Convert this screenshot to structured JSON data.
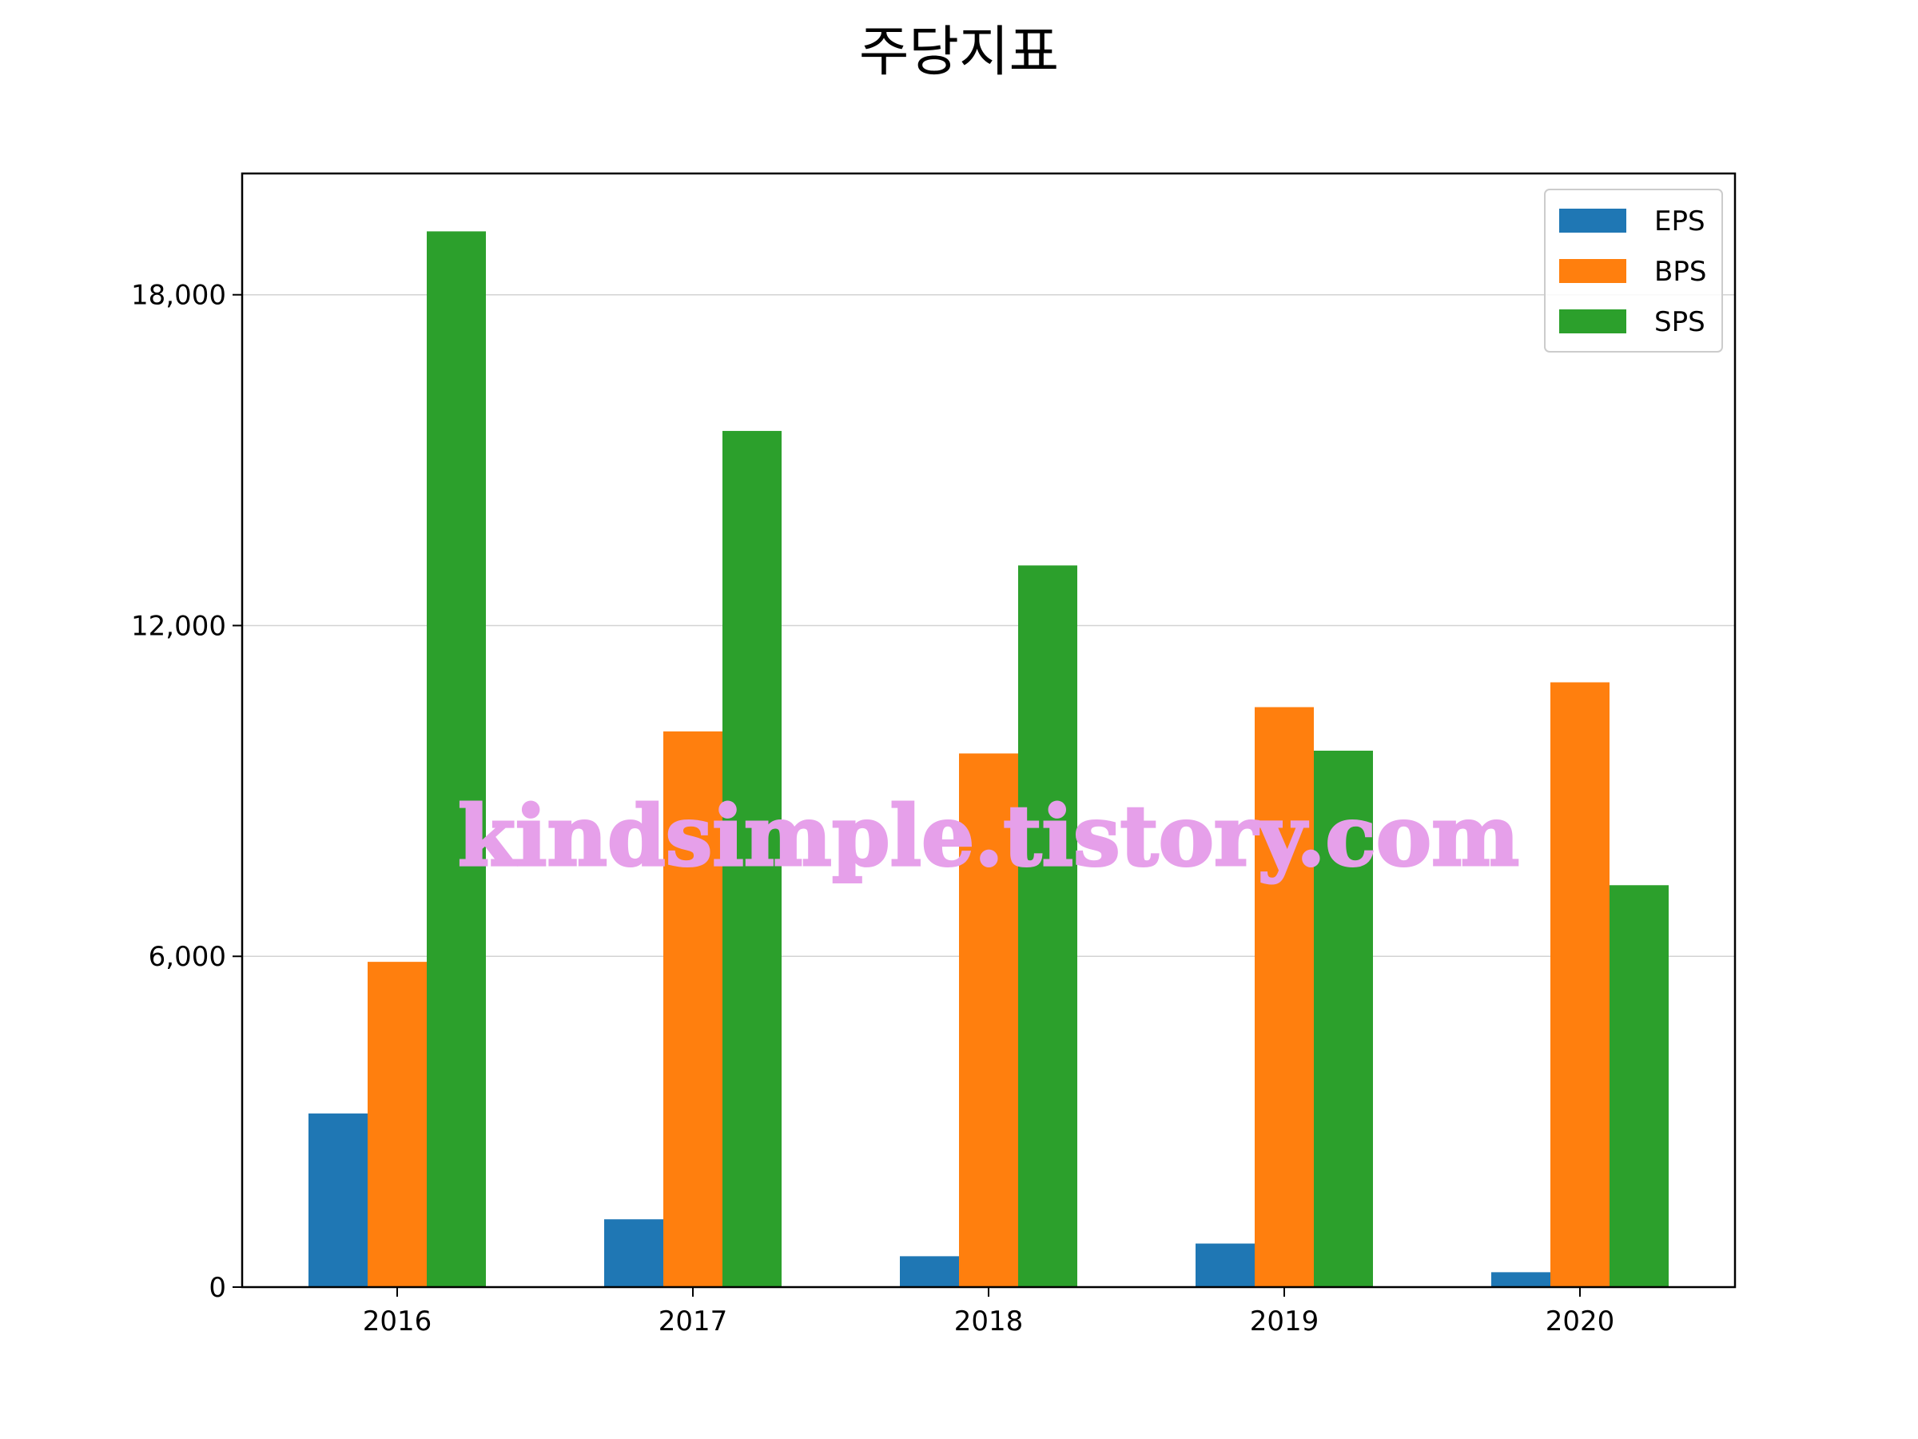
{
  "chart_data": {
    "type": "bar",
    "title": "주당지표",
    "xlabel": "",
    "ylabel": "",
    "categories": [
      "2016",
      "2017",
      "2018",
      "2019",
      "2020"
    ],
    "series": [
      {
        "name": "EPS",
        "color": "#1f77b4",
        "values": [
          3150,
          1230,
          560,
          790,
          270
        ]
      },
      {
        "name": "BPS",
        "color": "#ff7f0e",
        "values": [
          5900,
          10080,
          9680,
          10520,
          10970
        ]
      },
      {
        "name": "SPS",
        "color": "#2ca02c",
        "values": [
          19150,
          15530,
          13090,
          9730,
          7290
        ]
      }
    ],
    "ylim": [
      0,
      20200
    ],
    "yticks": [
      0,
      6000,
      12000,
      18000
    ],
    "ytick_labels": [
      "0",
      "6,000",
      "12,000",
      "18,000"
    ],
    "grid": "y",
    "legend_position": "top-right"
  },
  "watermark": "kindsimple.tistory.com"
}
